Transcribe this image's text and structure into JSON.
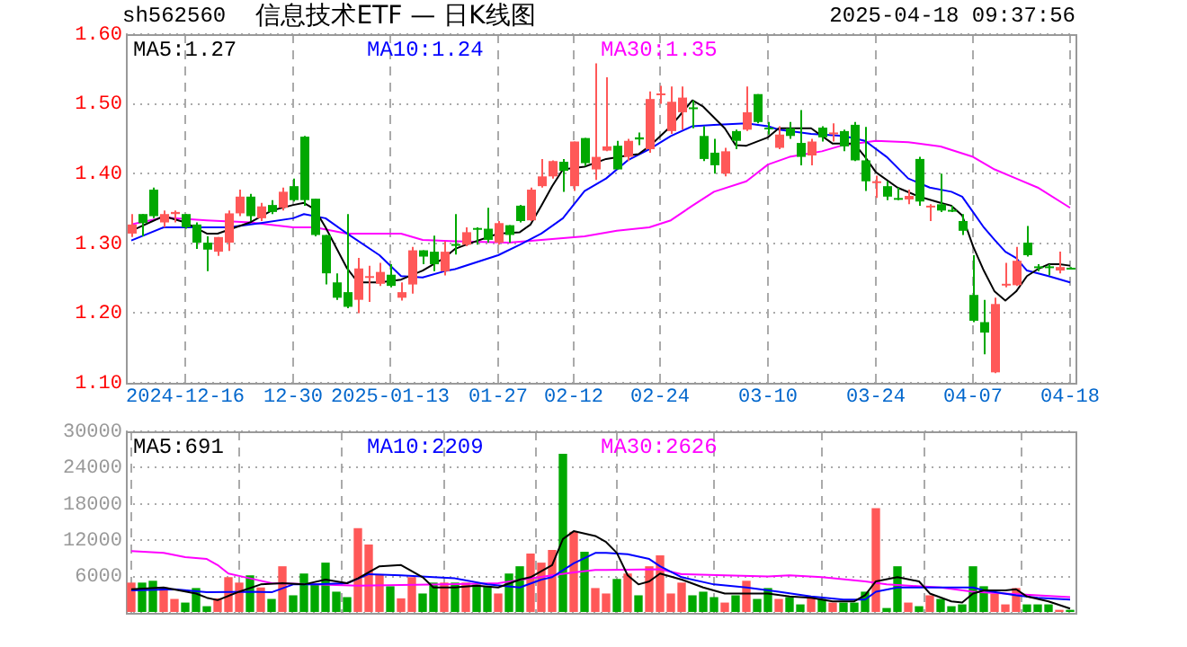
{
  "chart_data": [
    {
      "type": "candlestick",
      "title": "信息技术ETF — 日K线图",
      "annotations": [
        "sh562560",
        "2025-04-18 09:37:56"
      ],
      "categories": [
        null,
        null,
        null,
        null,
        null,
        "2024-12-16",
        null,
        null,
        null,
        null,
        null,
        null,
        null,
        null,
        null,
        "12-30",
        null,
        null,
        null,
        null,
        null,
        null,
        null,
        null,
        "2025-01-13",
        null,
        null,
        null,
        null,
        null,
        null,
        null,
        null,
        null,
        "01-27",
        null,
        null,
        null,
        null,
        null,
        null,
        "02-12",
        null,
        null,
        null,
        null,
        null,
        null,
        null,
        "02-24",
        null,
        null,
        null,
        null,
        null,
        null,
        null,
        null,
        null,
        "03-10",
        null,
        null,
        null,
        null,
        null,
        null,
        null,
        null,
        null,
        "03-24",
        null,
        null,
        null,
        null,
        null,
        null,
        null,
        null,
        "04-07",
        null,
        null,
        null,
        null,
        null,
        null,
        null,
        null,
        "04-18"
      ],
      "ohlc": [
        [
          1.314,
          1.342,
          1.309,
          1.327
        ],
        [
          1.342,
          1.342,
          1.31,
          1.329
        ],
        [
          1.377,
          1.38,
          1.336,
          1.339
        ],
        [
          1.33,
          1.347,
          1.323,
          1.342
        ],
        [
          1.342,
          1.347,
          1.33,
          1.345
        ],
        [
          1.342,
          1.342,
          1.321,
          1.323
        ],
        [
          1.327,
          1.33,
          1.292,
          1.301
        ],
        [
          1.301,
          1.31,
          1.26,
          1.291
        ],
        [
          1.288,
          1.309,
          1.282,
          1.309
        ],
        [
          1.301,
          1.347,
          1.289,
          1.343
        ],
        [
          1.343,
          1.377,
          1.339,
          1.367
        ],
        [
          1.367,
          1.371,
          1.332,
          1.339
        ],
        [
          1.336,
          1.358,
          1.332,
          1.353
        ],
        [
          1.355,
          1.362,
          1.342,
          1.345
        ],
        [
          1.351,
          1.38,
          1.347,
          1.374
        ],
        [
          1.382,
          1.393,
          1.36,
          1.362
        ],
        [
          1.453,
          1.454,
          1.354,
          1.362
        ],
        [
          1.364,
          1.364,
          1.31,
          1.312
        ],
        [
          1.312,
          1.312,
          1.241,
          1.257
        ],
        [
          1.244,
          1.257,
          1.219,
          1.222
        ],
        [
          1.23,
          1.342,
          1.207,
          1.209
        ],
        [
          1.219,
          1.279,
          1.2,
          1.264
        ],
        [
          1.251,
          1.268,
          1.216,
          1.253
        ],
        [
          1.242,
          1.272,
          1.239,
          1.259
        ],
        [
          1.255,
          1.27,
          1.237,
          1.239
        ],
        [
          1.222,
          1.244,
          1.218,
          1.23
        ],
        [
          1.241,
          1.295,
          1.228,
          1.29
        ],
        [
          1.29,
          1.29,
          1.27,
          1.281
        ],
        [
          1.288,
          1.311,
          1.26,
          1.27
        ],
        [
          1.26,
          1.303,
          1.254,
          1.288
        ],
        [
          1.299,
          1.342,
          1.284,
          1.297
        ],
        [
          1.298,
          1.323,
          1.296,
          1.316
        ],
        [
          1.322,
          1.323,
          1.298,
          1.32
        ],
        [
          1.321,
          1.351,
          1.301,
          1.305
        ],
        [
          1.301,
          1.332,
          1.298,
          1.329
        ],
        [
          1.326,
          1.326,
          1.301,
          1.312
        ],
        [
          1.354,
          1.355,
          1.33,
          1.332
        ],
        [
          1.333,
          1.38,
          1.332,
          1.377
        ],
        [
          1.382,
          1.421,
          1.38,
          1.396
        ],
        [
          1.396,
          1.419,
          1.393,
          1.418
        ],
        [
          1.417,
          1.421,
          1.374,
          1.404
        ],
        [
          1.382,
          1.446,
          1.375,
          1.446
        ],
        [
          1.451,
          1.451,
          1.411,
          1.415
        ],
        [
          1.406,
          1.558,
          1.391,
          1.424
        ],
        [
          1.433,
          1.538,
          1.432,
          1.439
        ],
        [
          1.44,
          1.447,
          1.406,
          1.406
        ],
        [
          1.424,
          1.45,
          1.418,
          1.447
        ],
        [
          1.452,
          1.459,
          1.441,
          1.449
        ],
        [
          1.435,
          1.518,
          1.43,
          1.507
        ],
        [
          1.513,
          1.526,
          1.5,
          1.515
        ],
        [
          1.461,
          1.525,
          1.457,
          1.503
        ],
        [
          1.488,
          1.525,
          1.463,
          1.509
        ],
        [
          1.495,
          1.505,
          1.465,
          1.493
        ],
        [
          1.454,
          1.468,
          1.418,
          1.421
        ],
        [
          1.43,
          1.45,
          1.4,
          1.412
        ],
        [
          1.4,
          1.437,
          1.396,
          1.432
        ],
        [
          1.461,
          1.463,
          1.435,
          1.447
        ],
        [
          1.463,
          1.525,
          1.461,
          1.488
        ],
        [
          1.514,
          1.514,
          1.472,
          1.474
        ],
        [
          1.466,
          1.474,
          1.456,
          1.464
        ],
        [
          1.437,
          1.468,
          1.435,
          1.456
        ],
        [
          1.465,
          1.474,
          1.45,
          1.454
        ],
        [
          1.444,
          1.491,
          1.412,
          1.424
        ],
        [
          1.426,
          1.45,
          1.412,
          1.446
        ],
        [
          1.466,
          1.468,
          1.446,
          1.452
        ],
        [
          1.458,
          1.472,
          1.446,
          1.459
        ],
        [
          1.461,
          1.463,
          1.432,
          1.439
        ],
        [
          1.47,
          1.474,
          1.418,
          1.419
        ],
        [
          1.419,
          1.467,
          1.375,
          1.389
        ],
        [
          1.387,
          1.397,
          1.365,
          1.389
        ],
        [
          1.382,
          1.389,
          1.362,
          1.367
        ],
        [
          1.365,
          1.38,
          1.362,
          1.364
        ],
        [
          1.363,
          1.377,
          1.356,
          1.368
        ],
        [
          1.421,
          1.424,
          1.354,
          1.36
        ],
        [
          1.353,
          1.356,
          1.332,
          1.354
        ],
        [
          1.356,
          1.4,
          1.345,
          1.347
        ],
        [
          1.348,
          1.354,
          1.345,
          1.347
        ],
        [
          1.332,
          1.342,
          1.312,
          1.318
        ],
        [
          1.226,
          1.283,
          1.187,
          1.189
        ],
        [
          1.187,
          1.219,
          1.141,
          1.172
        ],
        [
          1.115,
          1.222,
          1.114,
          1.213
        ],
        [
          1.24,
          1.272,
          1.237,
          1.242
        ],
        [
          1.24,
          1.295,
          1.239,
          1.275
        ],
        [
          1.301,
          1.325,
          1.281,
          1.283
        ],
        [
          1.267,
          1.27,
          1.26,
          1.266
        ],
        [
          1.267,
          1.27,
          1.254,
          1.265
        ],
        [
          1.261,
          1.288,
          1.257,
          1.266
        ],
        [
          1.265,
          1.266,
          1.264,
          1.264
        ]
      ],
      "colors": [
        "#ff5858",
        "#00a800",
        "#00a800",
        "#ff5858",
        "#ff5858",
        "#00a800",
        "#00a800",
        "#00a800",
        "#ff5858",
        "#ff5858",
        "#ff5858",
        "#00a800",
        "#ff5858",
        "#00a800",
        "#ff5858",
        "#00a800",
        "#00a800",
        "#00a800",
        "#00a800",
        "#00a800",
        "#00a800",
        "#ff5858",
        "#ff5858",
        "#ff5858",
        "#00a800",
        "#ff5858",
        "#ff5858",
        "#00a800",
        "#00a800",
        "#ff5858",
        "#00a800",
        "#ff5858",
        "#00a800",
        "#00a800",
        "#ff5858",
        "#00a800",
        "#00a800",
        "#ff5858",
        "#ff5858",
        "#ff5858",
        "#00a800",
        "#ff5858",
        "#00a800",
        "#ff5858",
        "#ff5858",
        "#00a800",
        "#ff5858",
        "#00a800",
        "#ff5858",
        "#ff5858",
        "#ff5858",
        "#ff5858",
        "#00a800",
        "#00a800",
        "#00a800",
        "#ff5858",
        "#00a800",
        "#ff5858",
        "#00a800",
        "#00a800",
        "#ff5858",
        "#00a800",
        "#00a800",
        "#ff5858",
        "#00a800",
        "#ff5858",
        "#00a800",
        "#00a800",
        "#00a800",
        "#ff5858",
        "#00a800",
        "#00a800",
        "#ff5858",
        "#00a800",
        "#ff5858",
        "#00a800",
        "#00a800",
        "#00a800",
        "#00a800",
        "#00a800",
        "#ff5858",
        "#ff5858",
        "#ff5858",
        "#00a800",
        "#00a800",
        "#00a800",
        "#ff5858",
        "#00a800"
      ],
      "series": [
        {
          "type": "line",
          "name": "MA5:1.27",
          "color": "#000000",
          "values": [
            1.318,
            null,
            null,
            1.339,
            null,
            1.33,
            null,
            1.314,
            1.314,
            null,
            null,
            1.33,
            null,
            1.347,
            null,
            1.355,
            1.358,
            1.349,
            1.323,
            null,
            1.264,
            1.244,
            null,
            1.244,
            null,
            1.248,
            null,
            1.261,
            null,
            1.279,
            1.292,
            1.298,
            null,
            null,
            1.314,
            null,
            1.316,
            1.327,
            1.354,
            1.382,
            1.406,
            null,
            1.41,
            null,
            1.421,
            null,
            1.426,
            1.428,
            1.439,
            null,
            1.468,
            null,
            1.505,
            1.496,
            null,
            1.465,
            1.441,
            1.44,
            null,
            1.452,
            1.465,
            1.465,
            null,
            1.465,
            null,
            1.443,
            null,
            1.443,
            1.424,
            1.402,
            null,
            1.38,
            null,
            1.367,
            null,
            1.358,
            1.354,
            1.34,
            1.296,
            1.261,
            1.231,
            1.218,
            1.231,
            1.253,
            1.263,
            1.27,
            1.27,
            1.268
          ]
        },
        {
          "type": "line",
          "name": "MA10:1.24",
          "color": "#0000ff",
          "values": [
            1.304,
            null,
            null,
            1.323,
            null,
            null,
            null,
            1.323,
            null,
            1.323,
            null,
            null,
            1.329,
            null,
            null,
            1.336,
            1.342,
            null,
            1.336,
            null,
            1.314,
            null,
            null,
            1.283,
            null,
            1.253,
            null,
            1.251,
            null,
            1.26,
            1.263,
            null,
            null,
            null,
            1.283,
            null,
            1.298,
            null,
            1.314,
            null,
            1.336,
            null,
            1.375,
            null,
            1.393,
            null,
            1.419,
            null,
            1.435,
            null,
            1.454,
            null,
            1.468,
            null,
            1.47,
            null,
            null,
            1.472,
            null,
            1.468,
            1.463,
            null,
            null,
            1.457,
            null,
            null,
            1.454,
            null,
            1.447,
            null,
            1.424,
            null,
            1.393,
            null,
            1.38,
            null,
            1.374,
            1.367,
            1.345,
            1.323,
            1.305,
            1.288,
            1.279,
            1.261,
            null,
            1.253,
            null,
            1.244
          ]
        },
        {
          "type": "line",
          "name": "MA30:1.35",
          "color": "#ff00ff",
          "values": [
            1.327,
            null,
            null,
            1.337,
            null,
            null,
            null,
            1.333,
            null,
            null,
            null,
            1.33,
            null,
            null,
            null,
            1.323,
            null,
            1.323,
            null,
            null,
            1.314,
            null,
            null,
            null,
            null,
            1.314,
            null,
            1.305,
            null,
            null,
            1.303,
            null,
            null,
            null,
            null,
            1.301,
            null,
            null,
            1.305,
            null,
            null,
            null,
            1.31,
            null,
            null,
            1.318,
            null,
            null,
            1.323,
            null,
            1.333,
            null,
            1.354,
            null,
            1.374,
            null,
            null,
            1.389,
            null,
            1.413,
            null,
            1.424,
            null,
            null,
            1.432,
            null,
            1.441,
            null,
            null,
            1.447,
            null,
            null,
            1.445,
            null,
            null,
            1.439,
            null,
            null,
            1.424,
            null,
            1.406,
            null,
            1.393,
            null,
            1.38,
            null,
            null,
            1.351
          ]
        }
      ],
      "ylim": [
        1.1,
        1.6
      ],
      "yticks": [
        {
          "value": 1.1,
          "label": "1.10"
        },
        {
          "value": 1.2,
          "label": "1.20"
        },
        {
          "value": 1.3,
          "label": "1.30"
        },
        {
          "value": 1.4,
          "label": "1.40"
        },
        {
          "value": 1.5,
          "label": "1.50"
        },
        {
          "value": 1.6,
          "label": "1.60"
        }
      ],
      "grid": true,
      "legend": "top left",
      "marker": "none"
    },
    {
      "type": "bar",
      "tick_labels": "y",
      "categories": [
        null,
        null,
        null,
        null,
        null,
        null,
        null,
        null,
        null,
        null,
        null,
        null,
        null,
        null,
        null,
        null,
        null,
        null,
        null,
        null,
        null,
        null,
        null,
        null,
        null,
        null,
        null,
        null,
        null,
        null,
        null,
        null,
        null,
        null,
        null,
        null,
        null,
        null,
        null,
        null,
        null,
        null,
        null,
        null,
        null,
        null,
        null,
        null,
        null,
        null,
        null,
        null,
        null,
        null,
        null,
        null,
        null,
        null,
        null,
        null,
        null,
        null,
        null,
        null,
        null,
        null,
        null,
        null,
        null,
        null,
        null,
        null,
        null,
        null,
        null,
        null,
        null,
        null,
        null,
        null,
        null,
        null,
        null,
        null,
        null,
        null,
        null,
        null
      ],
      "series": [
        {
          "type": "bar",
          "values": [
            5000,
            5000,
            5300,
            4200,
            2300,
            1700,
            4100,
            1100,
            2400,
            5900,
            5000,
            6200,
            4200,
            2300,
            7700,
            2900,
            6500,
            4700,
            8300,
            3500,
            2600,
            14000,
            11300,
            6400,
            4400,
            2400,
            5900,
            3200,
            5000,
            5000,
            5000,
            5000,
            4700,
            4400,
            3200,
            6500,
            7700,
            9800,
            8300,
            10400,
            26300,
            13400,
            10100,
            4100,
            3200,
            5600,
            6500,
            2900,
            7700,
            9500,
            3200,
            5000,
            2900,
            3500,
            2600,
            1700,
            2900,
            5300,
            2300,
            4100,
            2300,
            2600,
            1400,
            2600,
            2300,
            1700,
            1700,
            1700,
            3500,
            17300,
            800,
            7700,
            1700,
            1100,
            2900,
            2300,
            1100,
            1400,
            7700,
            4400,
            3200,
            1400,
            4100,
            1400,
            1400,
            1400,
            500,
            500
          ],
          "colors": [
            "#ff5858",
            "#00a800",
            "#00a800",
            "#ff5858",
            "#ff5858",
            "#00a800",
            "#00a800",
            "#00a800",
            "#ff5858",
            "#ff5858",
            "#ff5858",
            "#00a800",
            "#ff5858",
            "#00a800",
            "#ff5858",
            "#00a800",
            "#00a800",
            "#00a800",
            "#00a800",
            "#00a800",
            "#00a800",
            "#ff5858",
            "#ff5858",
            "#ff5858",
            "#00a800",
            "#ff5858",
            "#ff5858",
            "#00a800",
            "#00a800",
            "#ff5858",
            "#00a800",
            "#ff5858",
            "#00a800",
            "#00a800",
            "#ff5858",
            "#00a800",
            "#00a800",
            "#ff5858",
            "#ff5858",
            "#ff5858",
            "#00a800",
            "#ff5858",
            "#00a800",
            "#ff5858",
            "#ff5858",
            "#00a800",
            "#ff5858",
            "#00a800",
            "#ff5858",
            "#ff5858",
            "#ff5858",
            "#ff5858",
            "#00a800",
            "#00a800",
            "#00a800",
            "#ff5858",
            "#00a800",
            "#ff5858",
            "#00a800",
            "#00a800",
            "#ff5858",
            "#00a800",
            "#00a800",
            "#ff5858",
            "#00a800",
            "#ff5858",
            "#00a800",
            "#00a800",
            "#00a800",
            "#ff5858",
            "#00a800",
            "#00a800",
            "#ff5858",
            "#00a800",
            "#ff5858",
            "#00a800",
            "#00a800",
            "#00a800",
            "#00a800",
            "#00a800",
            "#ff5858",
            "#ff5858",
            "#ff5858",
            "#00a800",
            "#00a800",
            "#00a800",
            "#ff5858",
            "#00a800"
          ]
        },
        {
          "type": "line",
          "name": "MA5:691",
          "color": "#000000",
          "values": [
            3900,
            null,
            null,
            4200,
            null,
            null,
            3200,
            2500,
            2100,
            null,
            3500,
            null,
            4700,
            null,
            4900,
            null,
            4700,
            null,
            5500,
            null,
            4900,
            5700,
            null,
            7700,
            null,
            7900,
            null,
            5900,
            4200,
            null,
            4200,
            null,
            4500,
            null,
            4200,
            null,
            5500,
            5900,
            null,
            7900,
            12200,
            13500,
            null,
            12700,
            11700,
            9900,
            6200,
            4700,
            5200,
            6500,
            null,
            5500,
            null,
            4200,
            null,
            3200,
            null,
            3200,
            null,
            3200,
            null,
            2700,
            null,
            2500,
            null,
            1900,
            null,
            1900,
            2900,
            5200,
            null,
            5900,
            null,
            5200,
            3200,
            null,
            1900,
            1700,
            3200,
            3700,
            null,
            3700,
            3900,
            2700,
            null,
            1900,
            null,
            700
          ]
        },
        {
          "type": "line",
          "name": "MA10:2209",
          "color": "#0000ff",
          "values": [
            3700,
            null,
            null,
            null,
            3900,
            null,
            null,
            3400,
            null,
            null,
            null,
            3500,
            null,
            3400,
            null,
            4700,
            null,
            4700,
            null,
            null,
            4900,
            null,
            6400,
            null,
            null,
            6200,
            null,
            null,
            5900,
            null,
            5700,
            null,
            null,
            4700,
            null,
            null,
            4200,
            null,
            5500,
            5900,
            null,
            8200,
            null,
            9900,
            9900,
            null,
            9700,
            null,
            8900,
            7700,
            null,
            5900,
            null,
            null,
            4700,
            null,
            null,
            4200,
            null,
            null,
            3500,
            null,
            null,
            2700,
            null,
            null,
            2200,
            null,
            2200,
            3500,
            null,
            4200,
            null,
            null,
            4200,
            null,
            null,
            4200,
            4200,
            3700,
            null,
            null,
            2900,
            null,
            2500,
            null,
            null,
            2200
          ]
        },
        {
          "type": "line",
          "name": "MA30:2626",
          "color": "#ff00ff",
          "values": [
            10200,
            null,
            null,
            9900,
            null,
            9200,
            null,
            8900,
            7900,
            6500,
            null,
            5700,
            null,
            4900,
            null,
            null,
            null,
            4700,
            null,
            null,
            null,
            4500,
            null,
            null,
            null,
            null,
            null,
            null,
            null,
            4700,
            null,
            null,
            null,
            null,
            4900,
            null,
            null,
            5700,
            null,
            6200,
            null,
            6700,
            null,
            7100,
            7100,
            null,
            null,
            null,
            null,
            7200,
            null,
            6400,
            null,
            null,
            null,
            6200,
            null,
            null,
            null,
            6000,
            null,
            6200,
            null,
            null,
            5900,
            null,
            null,
            null,
            5200,
            null,
            4700,
            null,
            null,
            null,
            null,
            4200,
            null,
            null,
            3500,
            null,
            null,
            3200,
            null,
            null,
            2900,
            null,
            null,
            2600
          ]
        }
      ],
      "ylim": [
        0,
        30000
      ],
      "yticks": [
        {
          "value": 0,
          "label": null
        },
        6000,
        12000,
        18000,
        24000,
        30000
      ],
      "grid": true,
      "legend": "top left",
      "marker": "none"
    }
  ]
}
